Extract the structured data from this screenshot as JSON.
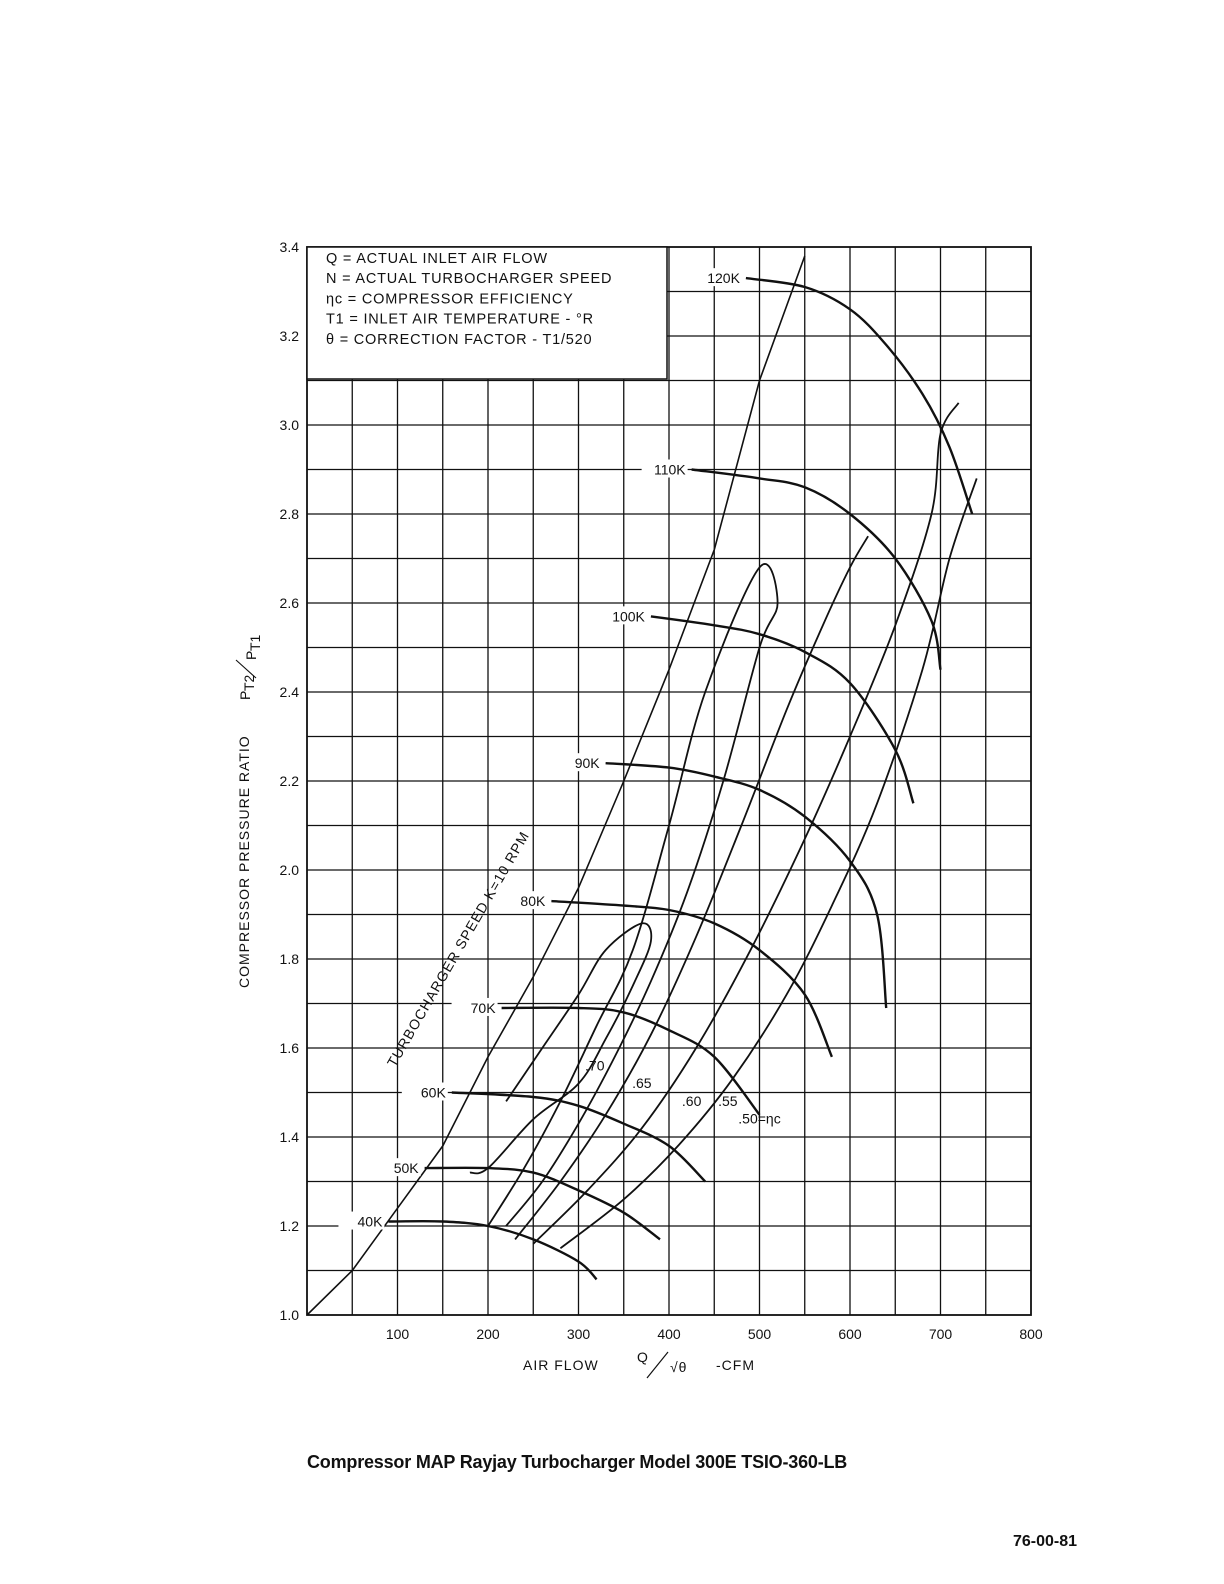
{
  "chart_data": {
    "type": "line",
    "xlabel_prefix": "AIR FLOW",
    "xlabel_fraction_num": "Q",
    "xlabel_fraction_den": "√θ",
    "xlabel_suffix": "-CFM",
    "ylabel": "COMPRESSOR PRESSURE RATIO",
    "ylabel_num": "P",
    "ylabel_num_sub": "T2",
    "ylabel_den": "P",
    "ylabel_den_sub": "T1",
    "xlim": [
      0,
      800
    ],
    "ylim": [
      1.0,
      3.4
    ],
    "grid": true,
    "x_ticks": [
      "100",
      "200",
      "300",
      "400",
      "500",
      "600",
      "700",
      "800"
    ],
    "y_ticks": [
      "1.0",
      "1.2",
      "1.4",
      "1.6",
      "1.8",
      "2.0",
      "2.2",
      "2.4",
      "2.6",
      "2.8",
      "3.0",
      "3.2",
      "3.4"
    ],
    "legend_lines": [
      "Q = ACTUAL INLET AIR FLOW",
      "N = ACTUAL TURBOCHARGER SPEED",
      "ηc = COMPRESSOR EFFICIENCY",
      "T1 = INLET AIR TEMPERATURE - °R",
      "θ = CORRECTION FACTOR - T1/520"
    ],
    "surge_line_label": "TURBOCHARGER SPEED K=10 RPM",
    "surge_line": [
      [
        0,
        1.0
      ],
      [
        50,
        1.1
      ],
      [
        100,
        1.24
      ],
      [
        150,
        1.38
      ],
      [
        200,
        1.58
      ],
      [
        250,
        1.76
      ],
      [
        300,
        1.96
      ],
      [
        350,
        2.2
      ],
      [
        400,
        2.45
      ],
      [
        450,
        2.72
      ],
      [
        500,
        3.1
      ],
      [
        550,
        3.38
      ]
    ],
    "speed_lines": [
      {
        "name": "40K",
        "points": [
          [
            90,
            1.21
          ],
          [
            150,
            1.21
          ],
          [
            200,
            1.2
          ],
          [
            250,
            1.17
          ],
          [
            300,
            1.12
          ],
          [
            320,
            1.08
          ]
        ]
      },
      {
        "name": "50K",
        "points": [
          [
            130,
            1.33
          ],
          [
            200,
            1.33
          ],
          [
            250,
            1.32
          ],
          [
            300,
            1.28
          ],
          [
            350,
            1.23
          ],
          [
            390,
            1.17
          ]
        ]
      },
      {
        "name": "60K",
        "points": [
          [
            160,
            1.5
          ],
          [
            250,
            1.49
          ],
          [
            300,
            1.47
          ],
          [
            350,
            1.43
          ],
          [
            400,
            1.38
          ],
          [
            440,
            1.3
          ]
        ]
      },
      {
        "name": "70K",
        "points": [
          [
            215,
            1.69
          ],
          [
            300,
            1.69
          ],
          [
            350,
            1.68
          ],
          [
            400,
            1.64
          ],
          [
            450,
            1.58
          ],
          [
            500,
            1.45
          ]
        ]
      },
      {
        "name": "80K",
        "points": [
          [
            270,
            1.93
          ],
          [
            350,
            1.92
          ],
          [
            400,
            1.91
          ],
          [
            450,
            1.88
          ],
          [
            500,
            1.82
          ],
          [
            550,
            1.72
          ],
          [
            580,
            1.58
          ]
        ]
      },
      {
        "name": "90K",
        "points": [
          [
            330,
            2.24
          ],
          [
            400,
            2.23
          ],
          [
            450,
            2.21
          ],
          [
            500,
            2.18
          ],
          [
            550,
            2.12
          ],
          [
            600,
            2.02
          ],
          [
            630,
            1.9
          ],
          [
            640,
            1.69
          ]
        ]
      },
      {
        "name": "100K",
        "points": [
          [
            380,
            2.57
          ],
          [
            450,
            2.55
          ],
          [
            500,
            2.53
          ],
          [
            550,
            2.49
          ],
          [
            600,
            2.42
          ],
          [
            650,
            2.27
          ],
          [
            670,
            2.15
          ]
        ]
      },
      {
        "name": "110K",
        "points": [
          [
            425,
            2.9
          ],
          [
            500,
            2.88
          ],
          [
            550,
            2.86
          ],
          [
            600,
            2.8
          ],
          [
            650,
            2.7
          ],
          [
            690,
            2.56
          ],
          [
            700,
            2.45
          ]
        ]
      },
      {
        "name": "120K",
        "points": [
          [
            485,
            3.33
          ],
          [
            550,
            3.31
          ],
          [
            600,
            3.26
          ],
          [
            640,
            3.18
          ],
          [
            680,
            3.07
          ],
          [
            710,
            2.95
          ],
          [
            735,
            2.8
          ]
        ]
      }
    ],
    "efficiency_islands": [
      {
        "name": ".70",
        "points": [
          [
            220,
            1.48
          ],
          [
            260,
            1.6
          ],
          [
            300,
            1.72
          ],
          [
            330,
            1.82
          ],
          [
            370,
            1.88
          ],
          [
            380,
            1.84
          ],
          [
            360,
            1.74
          ],
          [
            330,
            1.62
          ],
          [
            300,
            1.52
          ],
          [
            250,
            1.44
          ],
          [
            200,
            1.33
          ],
          [
            180,
            1.32
          ]
        ]
      },
      {
        "name": ".65",
        "points": [
          [
            200,
            1.2
          ],
          [
            240,
            1.33
          ],
          [
            280,
            1.48
          ],
          [
            320,
            1.65
          ],
          [
            360,
            1.82
          ],
          [
            400,
            2.1
          ],
          [
            440,
            2.4
          ],
          [
            500,
            2.68
          ],
          [
            520,
            2.6
          ],
          [
            500,
            2.5
          ],
          [
            460,
            2.2
          ],
          [
            420,
            1.95
          ],
          [
            380,
            1.75
          ],
          [
            340,
            1.58
          ],
          [
            300,
            1.43
          ],
          [
            260,
            1.3
          ],
          [
            220,
            1.2
          ]
        ]
      },
      {
        "name": ".60",
        "points": [
          [
            230,
            1.17
          ],
          [
            280,
            1.3
          ],
          [
            330,
            1.45
          ],
          [
            380,
            1.63
          ],
          [
            430,
            1.85
          ],
          [
            480,
            2.1
          ],
          [
            530,
            2.36
          ],
          [
            570,
            2.55
          ],
          [
            600,
            2.68
          ],
          [
            620,
            2.75
          ]
        ]
      },
      {
        "name": ".55",
        "points": [
          [
            250,
            1.16
          ],
          [
            310,
            1.28
          ],
          [
            370,
            1.42
          ],
          [
            430,
            1.6
          ],
          [
            490,
            1.82
          ],
          [
            550,
            2.07
          ],
          [
            600,
            2.3
          ],
          [
            650,
            2.55
          ],
          [
            690,
            2.8
          ],
          [
            700,
            2.98
          ],
          [
            720,
            3.05
          ]
        ]
      },
      {
        "name": ".50",
        "points": [
          [
            280,
            1.15
          ],
          [
            350,
            1.26
          ],
          [
            410,
            1.38
          ],
          [
            470,
            1.53
          ],
          [
            530,
            1.72
          ],
          [
            580,
            1.92
          ],
          [
            630,
            2.15
          ],
          [
            680,
            2.45
          ],
          [
            710,
            2.7
          ],
          [
            740,
            2.88
          ]
        ]
      }
    ],
    "annotations": [
      ".70",
      ".65",
      ".60",
      ".55",
      ".50=ηc"
    ]
  },
  "caption": "Compressor MAP Rayjay Turbocharger Model 300E TSIO-360-LB",
  "page_number": "76-00-81"
}
